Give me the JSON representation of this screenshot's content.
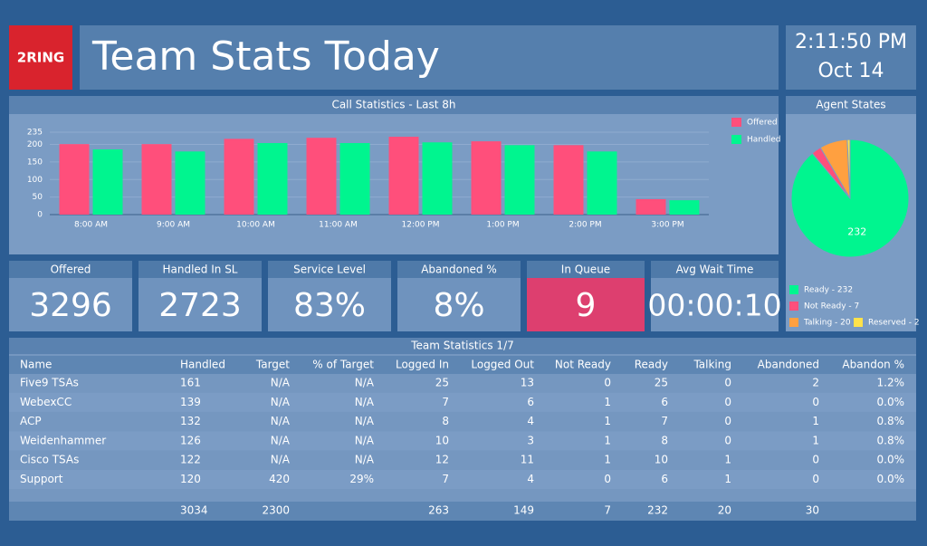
{
  "header": {
    "logo": "2RING",
    "title": "Team Stats Today",
    "time": "2:11:50 PM",
    "date": "Oct 14"
  },
  "chart_data": [
    {
      "type": "bar",
      "title": "Call Statistics - Last 8h",
      "categories": [
        "8:00 AM",
        "9:00 AM",
        "10:00 AM",
        "11:00 AM",
        "12:00 PM",
        "1:00 PM",
        "2:00 PM",
        "3:00 PM"
      ],
      "series": [
        {
          "name": "Offered",
          "color": "#ff4f7b",
          "values": [
            201,
            201,
            216,
            219,
            222,
            209,
            198,
            44
          ]
        },
        {
          "name": "Handled",
          "color": "#00f58f",
          "values": [
            186,
            180,
            204,
            204,
            206,
            198,
            180,
            41
          ]
        }
      ],
      "ylim": [
        0,
        235
      ],
      "yticks": [
        0,
        50,
        100,
        150,
        200,
        235
      ],
      "grid": true,
      "legend": "top-right"
    },
    {
      "type": "pie",
      "title": "Agent States",
      "categories": [
        "Ready - 232",
        "Not Ready - 7",
        "Talking - 20",
        "Reserved - 2"
      ],
      "values": [
        232,
        7,
        20,
        2
      ],
      "colors": [
        "#00f58f",
        "#ff4f7b",
        "#ffa040",
        "#ffe24a"
      ]
    }
  ],
  "kpis": [
    {
      "label": "Offered",
      "value": 3296
    },
    {
      "label": "Handled In SL",
      "value": 2723
    },
    {
      "label": "Service Level",
      "value": "83%"
    },
    {
      "label": "Abandoned %",
      "value": "8%"
    },
    {
      "label": "In Queue",
      "value": 9
    },
    {
      "label": "Avg Wait Time",
      "value": "00:00:10"
    }
  ],
  "table": {
    "title": "Team Statistics 1/7",
    "columns": [
      "Name",
      "Handled",
      "Target",
      "% of Target",
      "Logged In",
      "Logged Out",
      "Not Ready",
      "Ready",
      "Talking",
      "Abandoned",
      "Abandon %"
    ],
    "rows": [
      [
        "Five9 TSAs",
        161,
        "N/A",
        "N/A",
        25,
        13,
        0,
        25,
        0,
        2,
        "1.2%"
      ],
      [
        "WebexCC",
        139,
        "N/A",
        "N/A",
        7,
        6,
        1,
        6,
        0,
        0,
        "0.0%"
      ],
      [
        "ACP",
        132,
        "N/A",
        "N/A",
        8,
        4,
        1,
        7,
        0,
        1,
        "0.8%"
      ],
      [
        "Weidenhammer",
        126,
        "N/A",
        "N/A",
        10,
        3,
        1,
        8,
        0,
        1,
        "0.8%"
      ],
      [
        "Cisco TSAs",
        122,
        "N/A",
        "N/A",
        12,
        11,
        1,
        10,
        1,
        0,
        "0.0%"
      ],
      [
        "Support",
        120,
        420,
        "29%",
        7,
        4,
        0,
        6,
        1,
        0,
        "0.0%"
      ]
    ],
    "totals": [
      null,
      3034,
      2300,
      null,
      263,
      149,
      7,
      232,
      20,
      30,
      null
    ]
  }
}
